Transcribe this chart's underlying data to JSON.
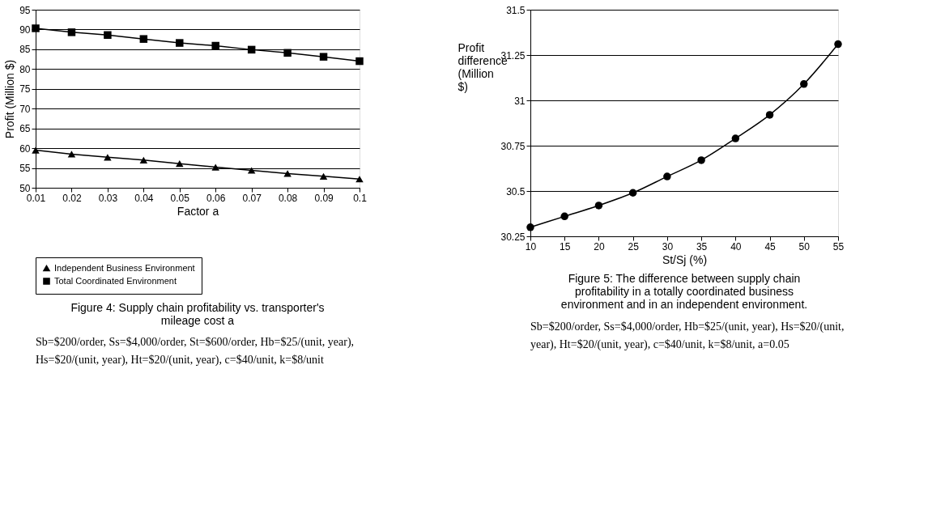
{
  "chart_data": [
    {
      "type": "line",
      "title": [
        "Figure 4: Supply chain profitability vs. transporter's",
        "mileage cost a"
      ],
      "xlabel": "Factor a",
      "ylabel": "Profit (Million $)",
      "x": [
        0.01,
        0.02,
        0.03,
        0.04,
        0.05,
        0.06,
        0.07,
        0.08,
        0.09,
        0.1
      ],
      "series": [
        {
          "name": "Independent Business Environment",
          "color": "#000000",
          "marker": "triangle",
          "values": [
            59.5,
            58.5,
            57.7,
            57.0,
            56.1,
            55.2,
            54.4,
            53.6,
            52.9,
            52.2
          ]
        },
        {
          "name": "Total Coordinated Environment",
          "color": "#000000",
          "marker": "square",
          "values": [
            90.3,
            89.3,
            88.6,
            87.6,
            86.6,
            85.9,
            84.9,
            84.1,
            83.1,
            82.0
          ]
        }
      ],
      "xlim": [
        0.01,
        0.1
      ],
      "xticks": [
        0.01,
        0.02,
        0.03,
        0.04,
        0.05,
        0.06,
        0.07,
        0.08,
        0.09,
        0.1
      ],
      "ylim": [
        50,
        95
      ],
      "yticks": [
        50,
        55,
        60,
        65,
        70,
        75,
        80,
        85,
        90,
        95
      ],
      "grid": "y",
      "legend": "bottom",
      "annotations": [
        "Sb=$200/order, Ss=$4,000/order, St=$600/order, Hb=$25/(unit, year), Hs=$20/(unit, year), Ht=$20/(unit, year), c=$40/unit, k=$8/unit"
      ]
    },
    {
      "type": "line",
      "title": [
        "Figure 5: The difference between supply chain",
        "profitability in a totally coordinated business",
        "environment and in an independent environment."
      ],
      "xlabel": "St/Sj (%)",
      "ylabel": "Profit difference (Million $)",
      "x": [
        10,
        15,
        20,
        25,
        30,
        35,
        40,
        45,
        50,
        55
      ],
      "series": [
        {
          "color": "#000000",
          "marker": "circle",
          "values": [
            30.3,
            30.36,
            30.42,
            30.49,
            30.58,
            30.67,
            30.79,
            30.92,
            31.09,
            31.31
          ]
        }
      ],
      "xlim": [
        10,
        55
      ],
      "xticks": [
        10,
        15,
        20,
        25,
        30,
        35,
        40,
        45,
        50,
        55
      ],
      "ylim": [
        30.25,
        31.5
      ],
      "yticks": [
        30.25,
        30.5,
        30.75,
        31,
        31.25,
        31.5
      ],
      "grid": "y",
      "annotations": [
        "Sb=$200/order, Ss=$4,000/order, Hb=$25/(unit, year), Hs=$20/(unit, year), Ht=$20/(unit, year), c=$40/unit, k=$8/unit, a=0.05"
      ]
    }
  ]
}
